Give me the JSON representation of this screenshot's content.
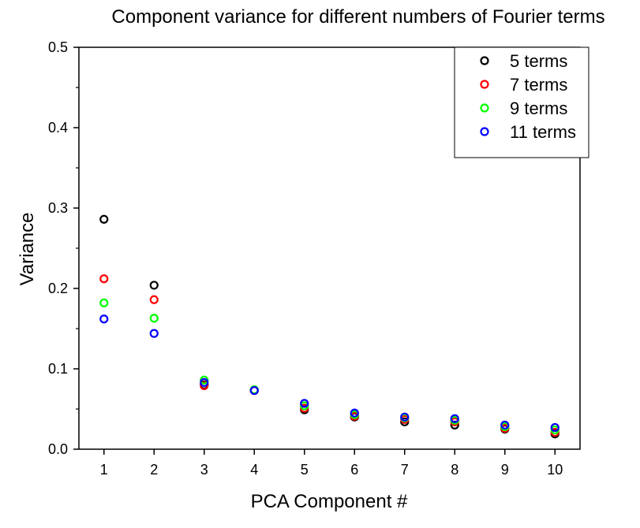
{
  "chart_data": {
    "type": "scatter",
    "title": "Component variance for different numbers of Fourier terms",
    "xlabel": "PCA Component #",
    "ylabel": "Variance",
    "xlim": [
      0.5,
      10.5
    ],
    "ylim": [
      0,
      0.5
    ],
    "x_ticks": [
      1,
      2,
      3,
      4,
      5,
      6,
      7,
      8,
      9,
      10
    ],
    "y_ticks": [
      0.0,
      0.1,
      0.2,
      0.3,
      0.4,
      0.5
    ],
    "y_tick_labels": [
      "0.0",
      "0.1",
      "0.2",
      "0.3",
      "0.4",
      "0.5"
    ],
    "grid": false,
    "legend_position": "top-right",
    "x": [
      1,
      2,
      3,
      4,
      5,
      6,
      7,
      8,
      9,
      10
    ],
    "series": [
      {
        "name": "5 terms",
        "color": "#000000",
        "values": [
          0.286,
          0.204,
          0.08,
          0.073,
          0.049,
          0.04,
          0.034,
          0.03,
          0.025,
          0.019
        ]
      },
      {
        "name": "7 terms",
        "color": "#ff0000",
        "values": [
          0.212,
          0.186,
          0.079,
          0.073,
          0.051,
          0.041,
          0.037,
          0.034,
          0.026,
          0.021
        ]
      },
      {
        "name": "9 terms",
        "color": "#00ff00",
        "values": [
          0.182,
          0.163,
          0.086,
          0.074,
          0.054,
          0.043,
          0.039,
          0.036,
          0.028,
          0.024
        ]
      },
      {
        "name": "11 terms",
        "color": "#0000ff",
        "values": [
          0.162,
          0.144,
          0.083,
          0.073,
          0.057,
          0.045,
          0.04,
          0.038,
          0.03,
          0.027
        ]
      }
    ]
  }
}
